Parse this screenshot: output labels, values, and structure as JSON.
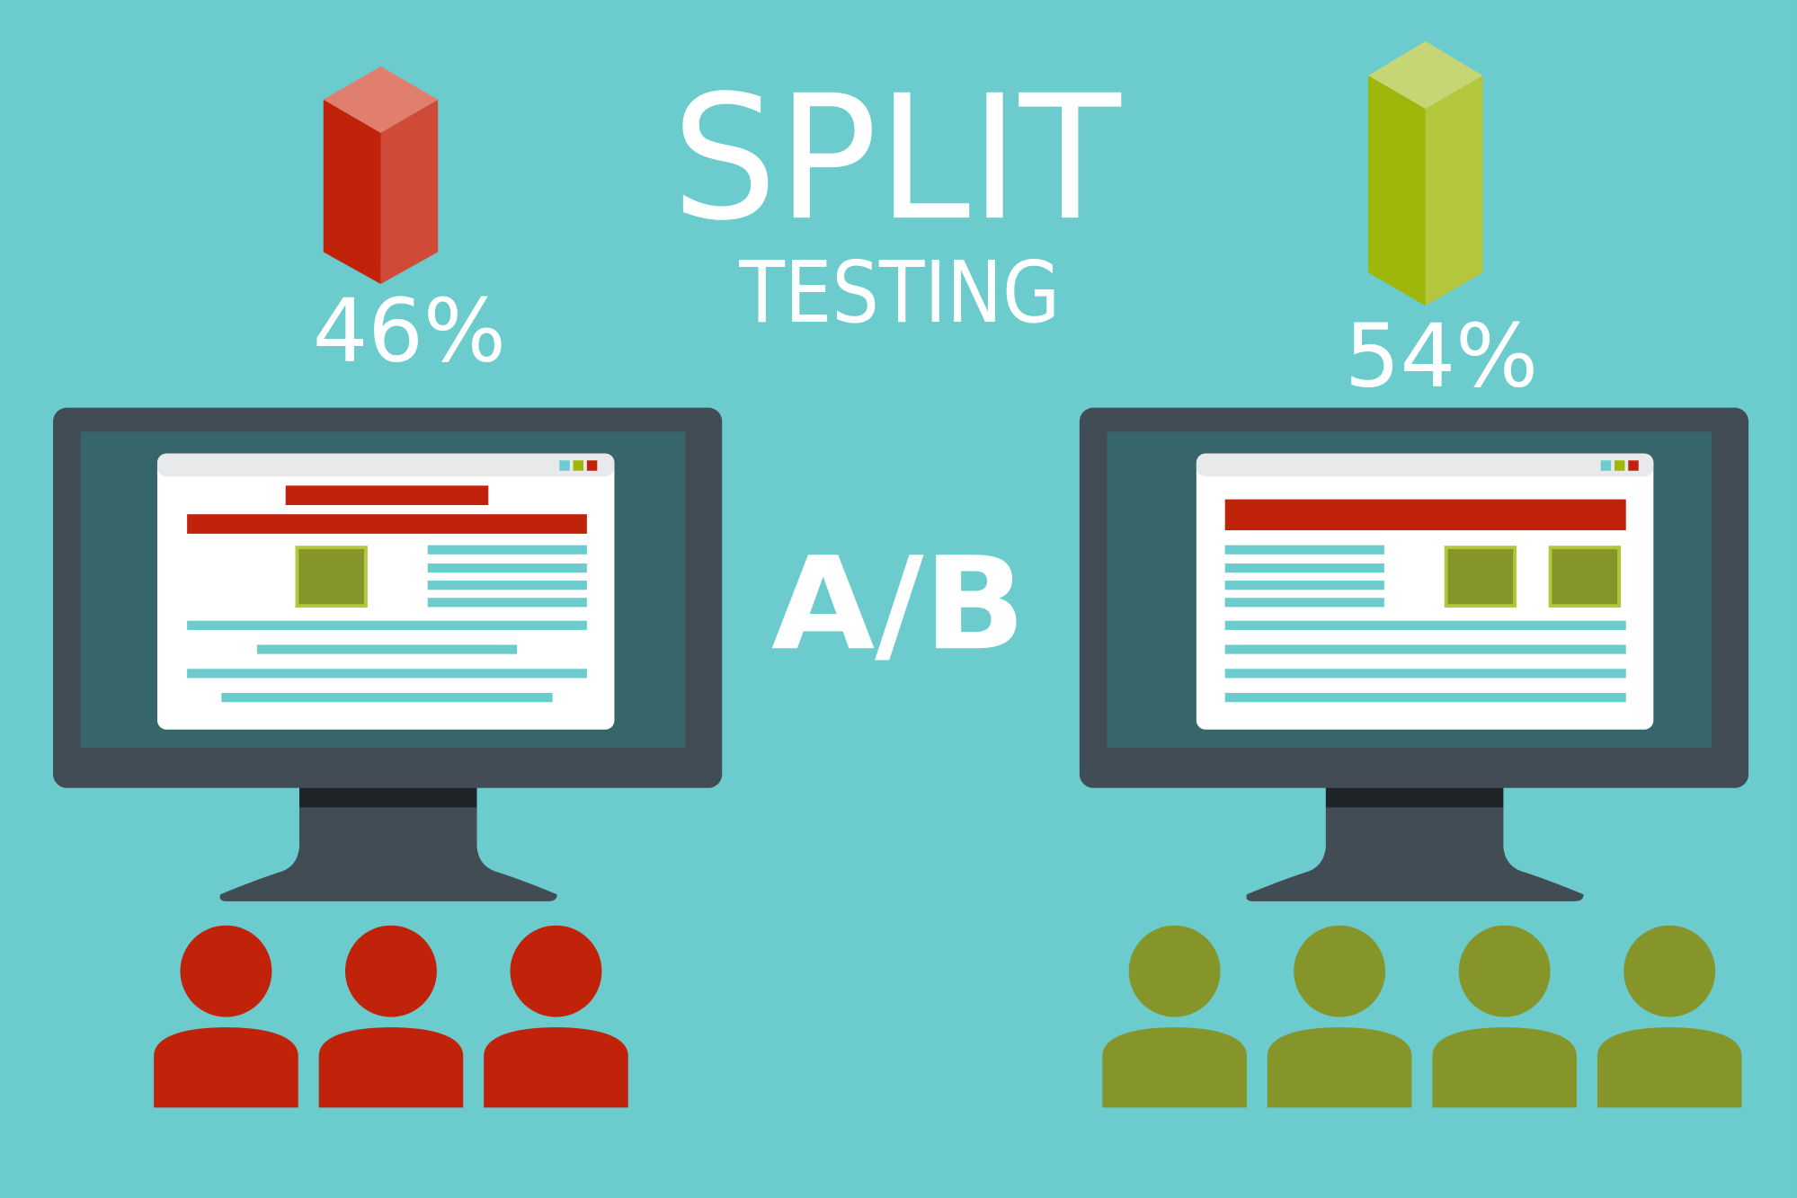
{
  "title": "SPLIT",
  "subtitle": "TESTING",
  "center_label": "A/B",
  "variant_a": {
    "percent_label": "46%",
    "percent_value": 46,
    "audience_count": 3,
    "color": "#c0220a"
  },
  "variant_b": {
    "percent_label": "54%",
    "percent_value": 54,
    "audience_count": 4,
    "color": "#86952a"
  },
  "colors": {
    "background": "#6bcbcd",
    "monitor_frame": "#424c55",
    "monitor_screen": "#37666a",
    "accent_teal": "#6bcbcd",
    "red": "#c0220a",
    "green": "#86952a",
    "green_bright": "#9fb70a"
  }
}
